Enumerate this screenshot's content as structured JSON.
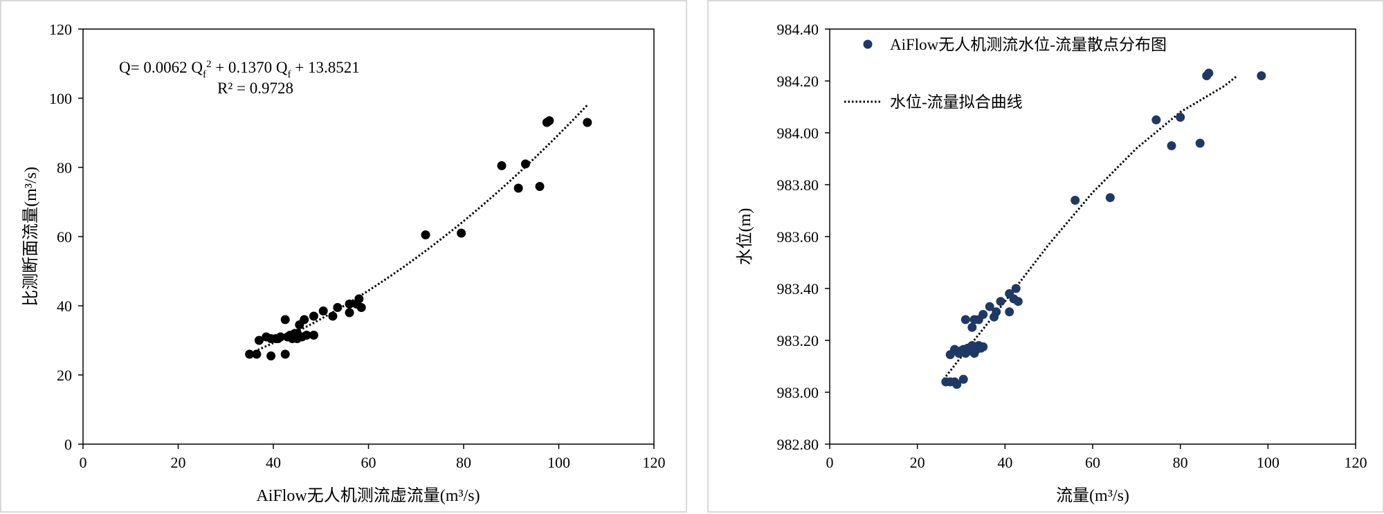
{
  "chart_data": [
    {
      "type": "scatter",
      "xlabel": "AiFlow无人机测流虚流量(m³/s)",
      "ylabel": "比测断面流量(m³/s)",
      "xlim": [
        0,
        120
      ],
      "ylim": [
        0,
        120
      ],
      "x_ticks": [
        "0",
        "20",
        "40",
        "60",
        "80",
        "100",
        "120"
      ],
      "y_ticks": [
        "0",
        "20",
        "40",
        "60",
        "80",
        "100",
        "120"
      ],
      "grid": false,
      "equation": {
        "main": "Q= 0.0062 Q",
        "sub1": "f",
        "sup": "2",
        "mid": " + 0.1370 Q",
        "sub2": "f",
        "tail": " + 13.8521"
      },
      "r2": "R² = 0.9728",
      "trendline": {
        "coeffs": [
          0.0062,
          0.137,
          13.8521
        ],
        "x_range": [
          36,
          106
        ]
      },
      "points": [
        [
          35,
          26
        ],
        [
          36.5,
          26
        ],
        [
          37,
          30
        ],
        [
          38.5,
          31
        ],
        [
          39.5,
          30.5
        ],
        [
          39.5,
          25.5
        ],
        [
          40.5,
          30.5
        ],
        [
          41,
          30.5
        ],
        [
          41.5,
          31
        ],
        [
          42.5,
          36
        ],
        [
          42.5,
          26
        ],
        [
          43,
          31
        ],
        [
          43.5,
          31.5
        ],
        [
          44,
          30.5
        ],
        [
          44.5,
          32
        ],
        [
          45,
          32
        ],
        [
          45.5,
          34.5
        ],
        [
          45,
          30.5
        ],
        [
          46,
          31
        ],
        [
          46.5,
          36
        ],
        [
          47,
          31.5
        ],
        [
          48.5,
          31.5
        ],
        [
          48.5,
          37
        ],
        [
          50.5,
          38.5
        ],
        [
          52.5,
          37
        ],
        [
          53.5,
          39.5
        ],
        [
          56,
          38
        ],
        [
          56,
          40.5
        ],
        [
          57.5,
          40.5
        ],
        [
          58,
          42
        ],
        [
          58.5,
          39.5
        ],
        [
          72,
          60.5
        ],
        [
          79.5,
          61
        ],
        [
          88,
          80.5
        ],
        [
          91.5,
          74
        ],
        [
          93,
          81
        ],
        [
          96,
          74.5
        ],
        [
          97.5,
          93
        ],
        [
          98,
          93.5
        ],
        [
          106,
          93
        ]
      ],
      "marker_color": "#000000"
    },
    {
      "type": "scatter",
      "xlabel": "流量(m³/s)",
      "ylabel": "水位(m)",
      "xlim": [
        0,
        120
      ],
      "ylim": [
        982.8,
        984.4
      ],
      "x_ticks": [
        "0",
        "20",
        "40",
        "60",
        "80",
        "100",
        "120"
      ],
      "y_ticks": [
        "982.80",
        "983.00",
        "983.20",
        "983.40",
        "983.60",
        "983.80",
        "984.00",
        "984.20",
        "984.40"
      ],
      "grid": false,
      "legend": {
        "placement": "top-left",
        "scatter_label": "AiFlow无人机测流水位-流量散点分布图",
        "line_label": "水位-流量拟合曲线"
      },
      "trendline": {
        "points": [
          [
            26,
            983.05
          ],
          [
            32,
            983.18
          ],
          [
            40,
            983.35
          ],
          [
            50,
            983.57
          ],
          [
            60,
            983.77
          ],
          [
            70,
            983.94
          ],
          [
            80,
            984.08
          ],
          [
            90,
            984.18
          ],
          [
            93,
            984.22
          ]
        ]
      },
      "points": [
        [
          26.5,
          983.04
        ],
        [
          27.5,
          983.04
        ],
        [
          28.5,
          983.04
        ],
        [
          29,
          983.03
        ],
        [
          30.5,
          983.05
        ],
        [
          27.5,
          983.145
        ],
        [
          28.5,
          983.165
        ],
        [
          29.5,
          983.15
        ],
        [
          30,
          983.16
        ],
        [
          30.5,
          983.165
        ],
        [
          31,
          983.15
        ],
        [
          31.5,
          983.17
        ],
        [
          32,
          983.16
        ],
        [
          32.5,
          983.18
        ],
        [
          33,
          983.15
        ],
        [
          33.5,
          983.165
        ],
        [
          34,
          983.18
        ],
        [
          34.5,
          983.17
        ],
        [
          35,
          983.175
        ],
        [
          31,
          983.28
        ],
        [
          32.5,
          983.25
        ],
        [
          33,
          983.28
        ],
        [
          34,
          983.28
        ],
        [
          35,
          983.3
        ],
        [
          36.5,
          983.33
        ],
        [
          37.5,
          983.29
        ],
        [
          38,
          983.31
        ],
        [
          39,
          983.35
        ],
        [
          41,
          983.31
        ],
        [
          41,
          983.38
        ],
        [
          42,
          983.36
        ],
        [
          42.5,
          983.4
        ],
        [
          43,
          983.35
        ],
        [
          56,
          983.74
        ],
        [
          64,
          983.75
        ],
        [
          74.5,
          984.05
        ],
        [
          78,
          983.95
        ],
        [
          80,
          984.06
        ],
        [
          84.5,
          983.96
        ],
        [
          86,
          984.22
        ],
        [
          86.5,
          984.23
        ],
        [
          98.5,
          984.22
        ]
      ],
      "marker_color": "#1f3864"
    }
  ]
}
